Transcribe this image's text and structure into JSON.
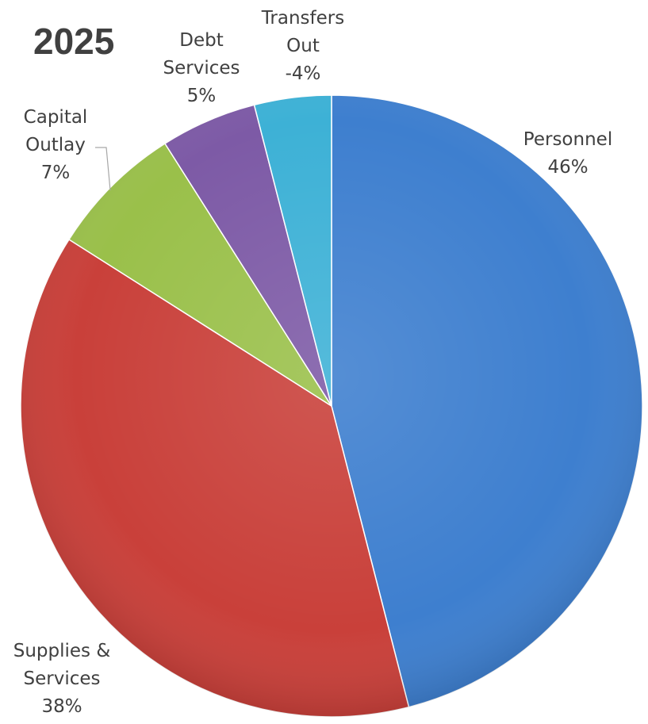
{
  "chart_data": {
    "type": "pie",
    "title": "2025",
    "slices": [
      {
        "name": "Personnel",
        "label_lines": [
          "Personnel"
        ],
        "value_label": "46%",
        "value": 46,
        "color": "#3e7fcf"
      },
      {
        "name": "Supplies & Services",
        "label_lines": [
          "Supplies &",
          "Services"
        ],
        "value_label": "38%",
        "value": 38,
        "color": "#c9403a"
      },
      {
        "name": "Capital Outlay",
        "label_lines": [
          "Capital",
          "Outlay"
        ],
        "value_label": "7%",
        "value": 7,
        "color": "#9ac04a"
      },
      {
        "name": "Debt Services",
        "label_lines": [
          "Debt",
          "Services"
        ],
        "value_label": "5%",
        "value": 5,
        "color": "#7d5aa6"
      },
      {
        "name": "Transfers Out",
        "label_lines": [
          "Transfers",
          "Out"
        ],
        "value_label": "-4%",
        "value": 4,
        "color": "#3db1d6"
      }
    ]
  }
}
